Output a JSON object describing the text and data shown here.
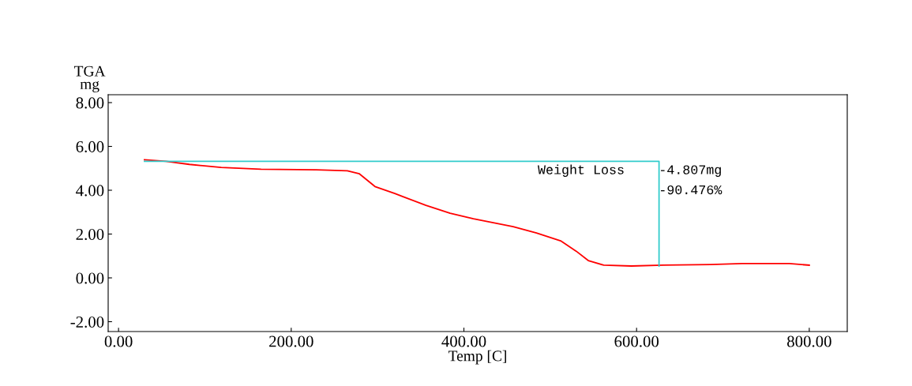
{
  "chart_data": {
    "type": "line",
    "xlabel": "Temp [C]",
    "ylabel": "TGA\nmg",
    "xlim": [
      -12,
      844
    ],
    "ylim": [
      -2.45,
      8.36
    ],
    "xticks": [
      {
        "value": 0,
        "label": "0.00"
      },
      {
        "value": 200,
        "label": "200.00"
      },
      {
        "value": 400,
        "label": "400.00"
      },
      {
        "value": 600,
        "label": "600.00"
      },
      {
        "value": 800,
        "label": "800.00"
      }
    ],
    "yticks": [
      {
        "value": -2,
        "label": "-2.00"
      },
      {
        "value": 0,
        "label": "0.00"
      },
      {
        "value": 2,
        "label": "2.00"
      },
      {
        "value": 4,
        "label": "4.00"
      },
      {
        "value": 6,
        "label": "6.00"
      },
      {
        "value": 8,
        "label": "8.00"
      }
    ],
    "grid": false,
    "legend": false,
    "marker": "none",
    "line_style": "solid",
    "series": [
      {
        "color": "#ff0000",
        "x": [
          30,
          55,
          82,
          119,
          165,
          229,
          265,
          279,
          288,
          297,
          320,
          356,
          384,
          411,
          457,
          484,
          512,
          530,
          544,
          562,
          594,
          631,
          686,
          722,
          777,
          800
        ],
        "values": [
          5.39,
          5.32,
          5.18,
          5.04,
          4.96,
          4.93,
          4.89,
          4.75,
          4.46,
          4.17,
          3.85,
          3.31,
          2.95,
          2.7,
          2.34,
          2.05,
          1.69,
          1.22,
          0.79,
          0.58,
          0.54,
          0.58,
          0.61,
          0.65,
          0.65,
          0.58
        ]
      },
      {
        "color": "#33cccc",
        "x": [
          30,
          626,
          626
        ],
        "values": [
          5.32,
          5.32,
          0.54
        ]
      }
    ],
    "annotations": [
      "Weight Loss",
      "-4.807mg",
      "-90.476%"
    ]
  }
}
